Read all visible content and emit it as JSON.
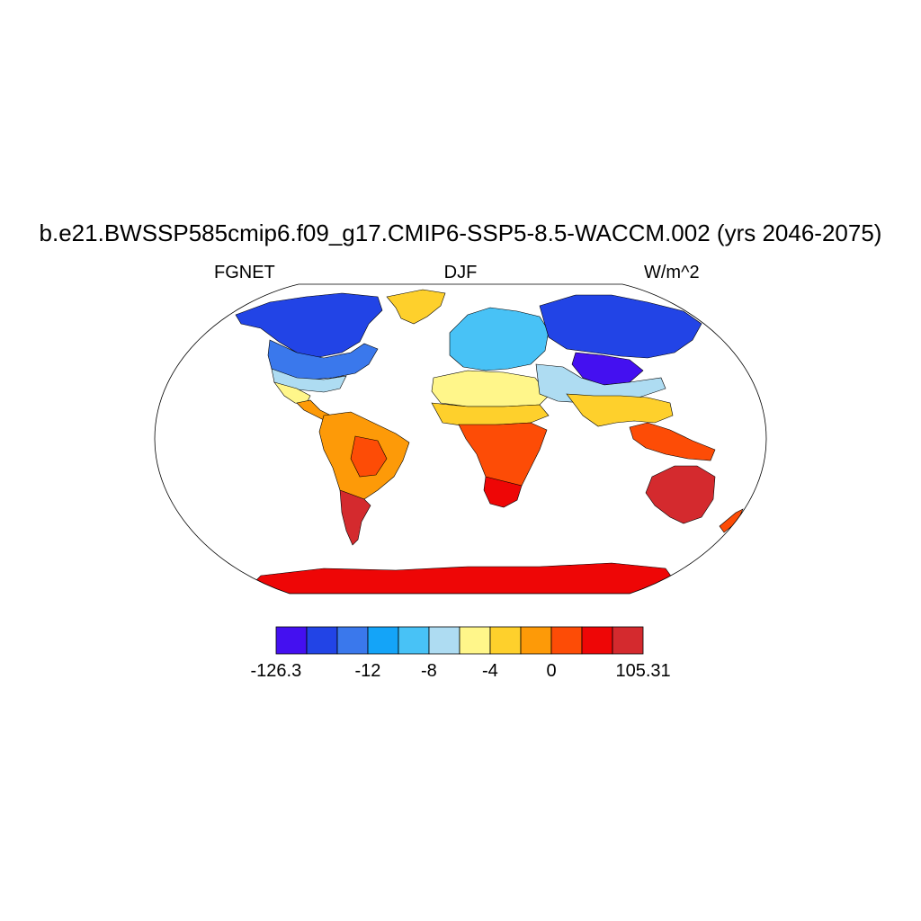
{
  "title": "b.e21.BWSSP585cmip6.f09_g17.CMIP6-SSP5-8.5-WACCM.002 (yrs 2046-2075)",
  "left_string": "FGNET",
  "center_string": "DJF",
  "right_string": "W/m^2",
  "colorbar": {
    "colors": [
      "#4410f0",
      "#2244e6",
      "#3a78ec",
      "#14a4f8",
      "#48c2f6",
      "#aedcf2",
      "#fff68a",
      "#fed02c",
      "#fd9a08",
      "#fd4c06",
      "#ee0606",
      "#d42a2e"
    ],
    "labels": [
      "-126.3",
      "-12",
      "-8",
      "-4",
      "0",
      "105.31"
    ],
    "label_edges": [
      0,
      3,
      5,
      7,
      9,
      12
    ]
  },
  "map": {
    "projection": "Robinson",
    "land_color_regions": {
      "greenland": "#fed02c",
      "north_america_north": "#2244e6",
      "north_america_mid": "#3a78ec",
      "usa_south": "#aedcf2",
      "mexico": "#fff68a",
      "central_america": "#fd9a08",
      "south_america": "#fd9a08",
      "south_america_interior": "#fd4c06",
      "south_america_south": "#d42a2e",
      "europe": "#48c2f6",
      "north_africa": "#fff68a",
      "sahel": "#fed02c",
      "southern_africa": "#fd4c06",
      "south_africa": "#ee0606",
      "siberia": "#2244e6",
      "central_asia": "#4410f0",
      "middle_east": "#aedcf2",
      "south_asia": "#fed02c",
      "southeast_asia": "#fd4c06",
      "australia": "#d42a2e",
      "new_zealand": "#fd4c06",
      "antarctica": "#ee0606"
    }
  }
}
